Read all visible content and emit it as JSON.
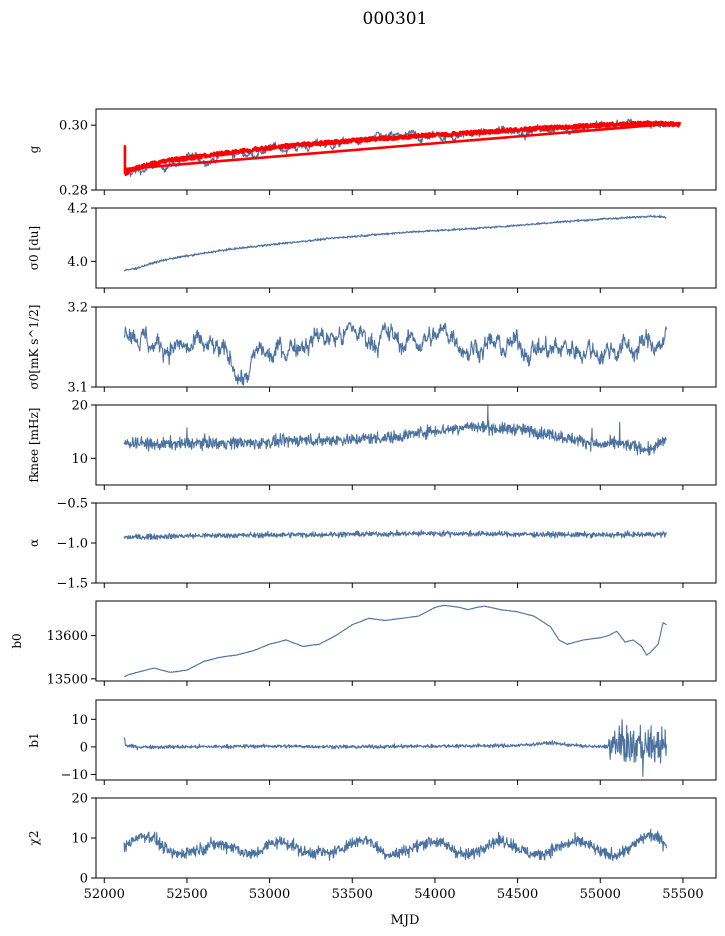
{
  "figure": {
    "title": "000301",
    "xlabel": "MJD"
  },
  "colors": {
    "series": "#4c72a0",
    "overlay": "#ff0000"
  },
  "chart_data": [
    {
      "type": "line",
      "ylabel": "g",
      "xlim": [
        51950,
        55700
      ],
      "ylim": [
        0.28,
        0.305
      ],
      "yticks": [
        "0.28",
        "0.30"
      ],
      "ytick_values": [
        0.28,
        0.3
      ],
      "show_xticklabels": false,
      "series": [
        {
          "noise": "gain",
          "color": "#4c72a0",
          "x": [
            52120,
            52150,
            52200,
            52300,
            52400,
            52500,
            52600,
            52700,
            52800,
            52900,
            53000,
            53100,
            53200,
            53300,
            53400,
            53500,
            53600,
            53700,
            53800,
            53900,
            54000,
            54100,
            54200,
            54300,
            54400,
            54500,
            54600,
            54700,
            54800,
            54900,
            55000,
            55100,
            55200,
            55300,
            55400
          ],
          "y": [
            0.2845,
            0.285,
            0.2855,
            0.2868,
            0.288,
            0.2892,
            0.2895,
            0.2905,
            0.2912,
            0.2915,
            0.2925,
            0.2932,
            0.2935,
            0.294,
            0.2942,
            0.2948,
            0.295,
            0.2955,
            0.296,
            0.2962,
            0.2968,
            0.2968,
            0.2972,
            0.2975,
            0.298,
            0.2985,
            0.2988,
            0.299,
            0.2992,
            0.2995,
            0.2998,
            0.3002,
            0.3,
            0.3005,
            0.3
          ]
        },
        {
          "noise": "band",
          "color": "#ff0000",
          "x": [
            52120,
            52150,
            52200,
            52300,
            52400,
            52500,
            52600,
            52700,
            52800,
            52900,
            53000,
            53100,
            53200,
            53300,
            53400,
            53500,
            53600,
            53700,
            53800,
            53900,
            54000,
            54100,
            54200,
            54300,
            54400,
            54500,
            54600,
            54700,
            54800,
            54900,
            55000,
            55100,
            55200,
            55300,
            55400,
            55480
          ],
          "y": [
            0.285,
            0.2858,
            0.2868,
            0.2882,
            0.2892,
            0.2898,
            0.2905,
            0.2912,
            0.2918,
            0.2925,
            0.293,
            0.2936,
            0.294,
            0.2944,
            0.2948,
            0.2952,
            0.2956,
            0.296,
            0.2963,
            0.2967,
            0.297,
            0.2972,
            0.2976,
            0.2979,
            0.2982,
            0.2986,
            0.2989,
            0.2992,
            0.2994,
            0.2997,
            0.3,
            0.3002,
            0.3004,
            0.3006,
            0.3004,
            0.3002
          ]
        }
      ]
    },
    {
      "type": "line",
      "ylabel": "σ0 [du]",
      "xlim": [
        51950,
        55700
      ],
      "ylim": [
        3.9,
        4.2
      ],
      "yticks": [
        "4.0",
        "4.2"
      ],
      "ytick_values": [
        4.0,
        4.2
      ],
      "show_xticklabels": false,
      "series": [
        {
          "noise": "small",
          "color": "#4c72a0",
          "x": [
            52120,
            52200,
            52300,
            52400,
            52500,
            52600,
            52700,
            52800,
            52900,
            53000,
            53200,
            53400,
            53600,
            53800,
            54000,
            54200,
            54400,
            54600,
            54800,
            55000,
            55200,
            55300,
            55400
          ],
          "y": [
            3.965,
            3.975,
            3.995,
            4.01,
            4.02,
            4.03,
            4.04,
            4.048,
            4.055,
            4.062,
            4.075,
            4.088,
            4.098,
            4.108,
            4.115,
            4.122,
            4.13,
            4.14,
            4.15,
            4.158,
            4.165,
            4.17,
            4.165
          ]
        }
      ]
    },
    {
      "type": "line",
      "ylabel": "σ0[mK s^1/2]",
      "xlim": [
        51950,
        55700
      ],
      "ylim": [
        3.1,
        3.2
      ],
      "yticks": [
        "3.1",
        "3.2"
      ],
      "ytick_values": [
        3.1,
        3.2
      ],
      "show_xticklabels": false,
      "series": [
        {
          "noise": "rough",
          "color": "#4c72a0",
          "x": [
            52120,
            52150,
            52200,
            52300,
            52400,
            52500,
            52600,
            52700,
            52800,
            52850,
            52900,
            52950,
            53000,
            53100,
            53200,
            53300,
            53400,
            53500,
            53600,
            53700,
            53800,
            53900,
            54000,
            54100,
            54200,
            54300,
            54400,
            54500,
            54600,
            54700,
            54800,
            54900,
            55000,
            55100,
            55200,
            55300,
            55400
          ],
          "y": [
            3.165,
            3.18,
            3.17,
            3.15,
            3.155,
            3.145,
            3.15,
            3.14,
            3.125,
            3.11,
            3.13,
            3.145,
            3.135,
            3.15,
            3.16,
            3.165,
            3.16,
            3.17,
            3.16,
            3.165,
            3.155,
            3.16,
            3.16,
            3.17,
            3.15,
            3.155,
            3.148,
            3.152,
            3.15,
            3.145,
            3.148,
            3.15,
            3.145,
            3.15,
            3.148,
            3.155,
            3.16
          ]
        }
      ]
    },
    {
      "type": "line",
      "ylabel": "fknee [mHz]",
      "xlim": [
        51950,
        55700
      ],
      "ylim": [
        5,
        20
      ],
      "yticks": [
        "10",
        "20"
      ],
      "ytick_values": [
        10,
        20
      ],
      "show_xticklabels": false,
      "series": [
        {
          "noise": "spiky",
          "color": "#4c72a0",
          "x": [
            52120,
            52200,
            52300,
            52400,
            52500,
            52600,
            52700,
            52800,
            52900,
            53000,
            53100,
            53200,
            53300,
            53400,
            53500,
            53600,
            53700,
            53800,
            53900,
            54000,
            54100,
            54200,
            54300,
            54400,
            54500,
            54600,
            54700,
            54800,
            54900,
            55000,
            55100,
            55200,
            55300,
            55400
          ],
          "y": [
            12.8,
            13.0,
            12.5,
            12.8,
            12.7,
            13.0,
            12.8,
            13.0,
            12.8,
            13.0,
            13.2,
            13.5,
            13.3,
            13.5,
            13.5,
            13.8,
            13.8,
            14.2,
            14.8,
            15.2,
            15.5,
            16.0,
            15.8,
            15.5,
            15.5,
            15.0,
            14.5,
            13.8,
            13.2,
            12.5,
            12.8,
            12.3,
            11.5,
            13.5
          ]
        }
      ]
    },
    {
      "type": "line",
      "ylabel": "α",
      "xlim": [
        51950,
        55700
      ],
      "ylim": [
        -1.5,
        -0.5
      ],
      "yticks": [
        "−1.5",
        "−1.0",
        "−0.5"
      ],
      "ytick_values": [
        -1.5,
        -1.0,
        -0.5
      ],
      "show_xticklabels": false,
      "series": [
        {
          "noise": "alpha",
          "color": "#4c72a0",
          "x": [
            52120,
            52500,
            53000,
            53500,
            54000,
            54500,
            55000,
            55400
          ],
          "y": [
            -0.93,
            -0.91,
            -0.9,
            -0.89,
            -0.88,
            -0.89,
            -0.9,
            -0.89
          ]
        }
      ]
    },
    {
      "type": "line",
      "ylabel": "b0",
      "xlim": [
        51950,
        55700
      ],
      "ylim": [
        13495,
        13680
      ],
      "yticks": [
        "13500",
        "13600"
      ],
      "ytick_values": [
        13500,
        13600
      ],
      "show_xticklabels": false,
      "series": [
        {
          "noise": "smooth",
          "color": "#4c72a0",
          "x": [
            52120,
            52150,
            52200,
            52300,
            52350,
            52400,
            52500,
            52600,
            52700,
            52800,
            52900,
            53000,
            53100,
            53200,
            53300,
            53400,
            53500,
            53600,
            53700,
            53800,
            53900,
            53950,
            54000,
            54050,
            54100,
            54150,
            54200,
            54250,
            54300,
            54400,
            54500,
            54600,
            54700,
            54750,
            54800,
            54850,
            54900,
            55000,
            55050,
            55100,
            55150,
            55200,
            55250,
            55280,
            55300,
            55350,
            55380,
            55400
          ],
          "y": [
            13505,
            13510,
            13515,
            13525,
            13520,
            13515,
            13520,
            13540,
            13550,
            13555,
            13565,
            13580,
            13590,
            13575,
            13580,
            13600,
            13625,
            13640,
            13635,
            13640,
            13645,
            13655,
            13665,
            13670,
            13668,
            13665,
            13660,
            13665,
            13668,
            13660,
            13655,
            13645,
            13620,
            13590,
            13580,
            13585,
            13590,
            13595,
            13600,
            13610,
            13585,
            13590,
            13575,
            13555,
            13560,
            13580,
            13630,
            13625
          ]
        }
      ]
    },
    {
      "type": "line",
      "ylabel": "b1",
      "xlim": [
        51950,
        55700
      ],
      "ylim": [
        -12,
        17
      ],
      "yticks": [
        "−10",
        "0",
        "10"
      ],
      "ytick_values": [
        -10,
        0,
        10
      ],
      "show_xticklabels": false,
      "series": [
        {
          "noise": "b1",
          "color": "#4c72a0",
          "x": [
            52120,
            52130,
            52200,
            52500,
            53000,
            53500,
            54000,
            54500,
            54700,
            54800,
            54900,
            55000,
            55100,
            55200,
            55300,
            55400
          ],
          "y": [
            3.5,
            0.5,
            0.0,
            0.0,
            0.3,
            0.0,
            0.3,
            0.5,
            1.5,
            0.8,
            0.3,
            0.0,
            0.5,
            0.5,
            0.5,
            0.3
          ]
        }
      ]
    },
    {
      "type": "line",
      "ylabel": "χ2",
      "xlim": [
        51950,
        55700
      ],
      "ylim": [
        0,
        20
      ],
      "yticks": [
        "0",
        "10",
        "20"
      ],
      "ytick_values": [
        0,
        10,
        20
      ],
      "xlabel": "MJD",
      "xticks": [
        "52000",
        "52500",
        "53000",
        "53500",
        "54000",
        "54500",
        "55000",
        "55500"
      ],
      "xtick_values": [
        52000,
        52500,
        53000,
        53500,
        54000,
        54500,
        55000,
        55500
      ],
      "show_xticklabels": true,
      "series": [
        {
          "noise": "chi",
          "color": "#4c72a0",
          "x": [
            52120,
            52200,
            52300,
            52400,
            52500,
            52600,
            52700,
            52800,
            52900,
            53000,
            53100,
            53200,
            53300,
            53400,
            53500,
            53600,
            53700,
            53800,
            53900,
            54000,
            54100,
            54200,
            54300,
            54400,
            54500,
            54600,
            54700,
            54800,
            54900,
            55000,
            55100,
            55200,
            55300,
            55400
          ],
          "y": [
            7.0,
            8.5,
            9.5,
            8.0,
            7.5,
            6.0,
            7.0,
            8.5,
            7.5,
            8.0,
            7.0,
            6.5,
            8.5,
            7.0,
            7.0,
            8.5,
            7.5,
            8.0,
            7.0,
            7.5,
            8.0,
            7.5,
            8.0,
            7.5,
            7.0,
            7.5,
            8.0,
            7.0,
            7.5,
            7.5,
            7.5,
            7.5,
            9.0,
            8.5
          ]
        }
      ]
    }
  ]
}
